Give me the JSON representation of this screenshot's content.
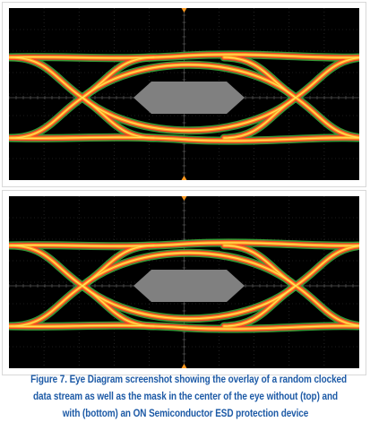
{
  "chart_data": [
    {
      "type": "eye-diagram",
      "title": "",
      "panel": "top",
      "condition": "without",
      "mask": "hexagon",
      "grid": true,
      "divisions": {
        "x": 10,
        "y": 8
      },
      "colors": {
        "background": "#000000",
        "grid": "#3a3a3a",
        "mask": "#808080"
      }
    },
    {
      "type": "eye-diagram",
      "title": "",
      "panel": "bottom",
      "condition": "with",
      "mask": "hexagon",
      "grid": true,
      "divisions": {
        "x": 10,
        "y": 8
      },
      "colors": {
        "background": "#000000",
        "grid": "#3a3a3a",
        "mask": "#808080"
      }
    }
  ],
  "caption": {
    "lines": [
      "Figure 7.  Eye Diagram screenshot showing the overlay of a random clocked",
      "data stream as well as the mask in the center of the eye without (top) and",
      "with (bottom) an ON Semiconductor ESD protection device"
    ],
    "color": "#1d5aa6"
  },
  "palette": {
    "trace_outer": "#3aa83a",
    "trace_mid": "#ff3a2a",
    "trace_core": "#ffa020",
    "trace_hot": "#ffe860",
    "marker": "#ff9a20"
  }
}
